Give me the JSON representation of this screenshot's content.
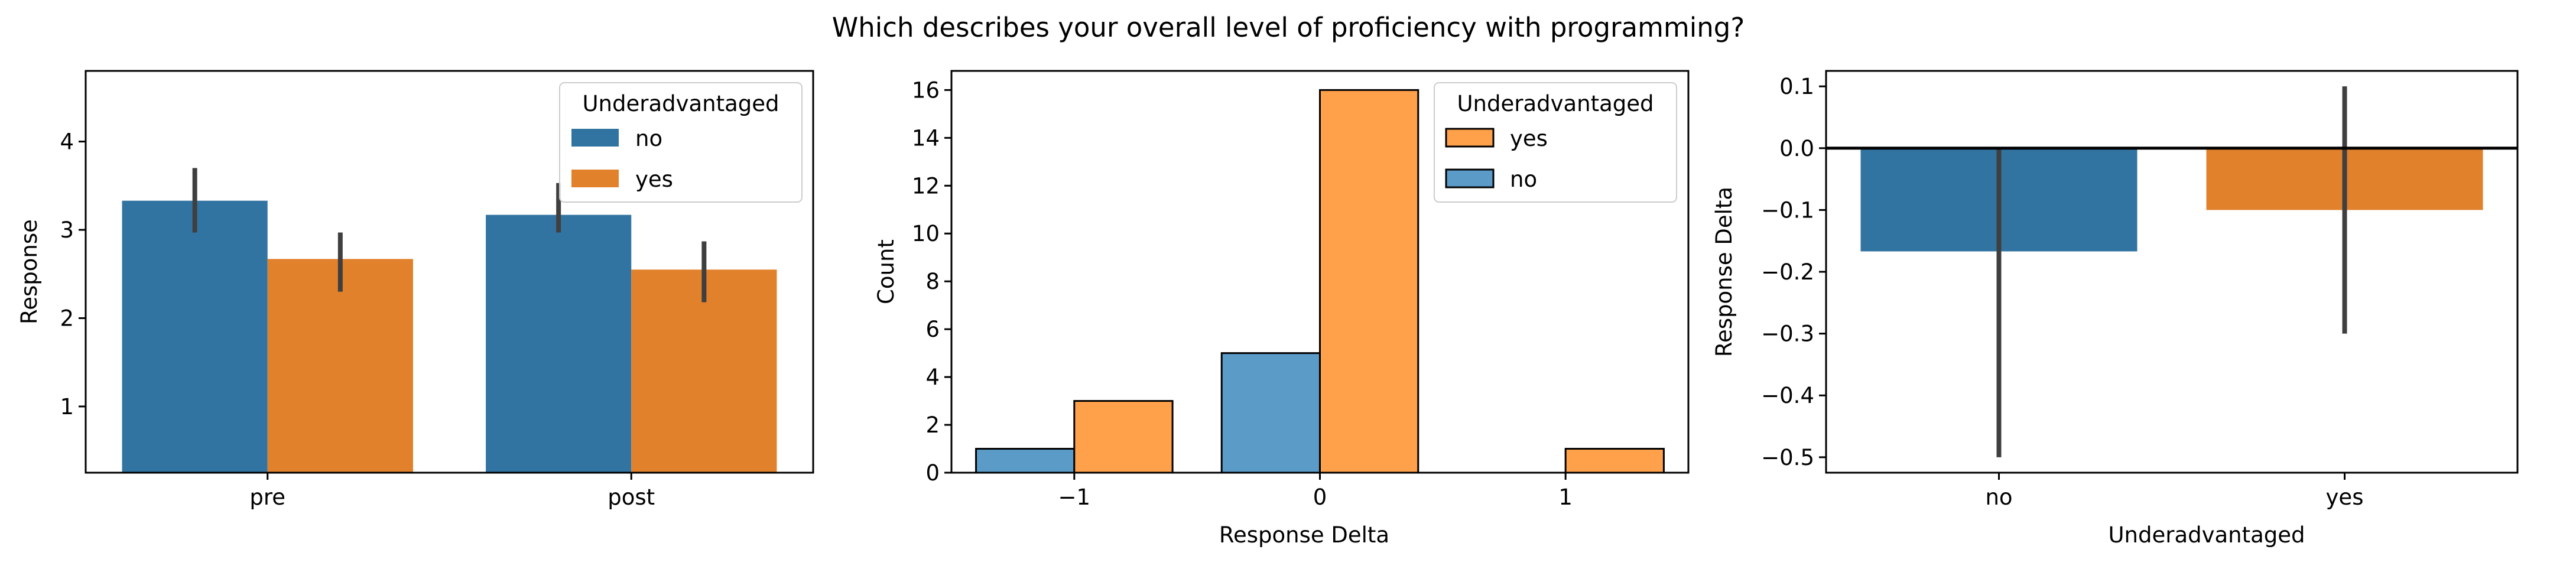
{
  "figure": {
    "title": "Which describes your overall level of proficiency with programming?"
  },
  "colors": {
    "no": "#3274a1",
    "yes": "#e1812c",
    "no_hist": "#5a9bc8",
    "yes_hist": "#ffa14a",
    "errbar": "#3f3f3f"
  },
  "chart_data": [
    {
      "type": "bar",
      "title": "",
      "xlabel": "",
      "ylabel": "Response",
      "categories": [
        "pre",
        "post"
      ],
      "ylim": [
        0.25,
        4.8
      ],
      "yticks": [
        1,
        2,
        3,
        4
      ],
      "legend": {
        "title": "Underadvantaged",
        "placement": "top-right",
        "entries": [
          "no",
          "yes"
        ]
      },
      "series": [
        {
          "name": "no",
          "values": [
            3.33,
            3.17
          ],
          "err_low": [
            2.97,
            2.97
          ],
          "err_high": [
            3.7,
            3.53
          ]
        },
        {
          "name": "yes",
          "values": [
            2.67,
            2.55
          ],
          "err_low": [
            2.3,
            2.18
          ],
          "err_high": [
            2.97,
            2.87
          ]
        }
      ]
    },
    {
      "type": "bar",
      "title": "",
      "xlabel": "Response Delta",
      "ylabel": "Count",
      "x": [
        -1,
        0,
        1
      ],
      "xtick_labels": [
        "−1",
        "0",
        "1"
      ],
      "ylim": [
        0,
        16.8
      ],
      "yticks": [
        0,
        2,
        4,
        6,
        8,
        10,
        12,
        14,
        16
      ],
      "legend": {
        "title": "Underadvantaged",
        "placement": "top-right",
        "entries": [
          "yes",
          "no"
        ]
      },
      "series": [
        {
          "name": "no",
          "values": [
            1,
            5,
            0
          ]
        },
        {
          "name": "yes",
          "values": [
            3,
            16,
            1
          ]
        }
      ]
    },
    {
      "type": "bar",
      "title": "",
      "xlabel": "Underadvantaged",
      "ylabel": "Response Delta",
      "categories": [
        "no",
        "yes"
      ],
      "ylim": [
        -0.525,
        0.125
      ],
      "yticks": [
        0.1,
        0.0,
        -0.1,
        -0.2,
        -0.3,
        -0.4,
        -0.5
      ],
      "ytick_labels": [
        "0.1",
        "0.0",
        "−0.1",
        "−0.2",
        "−0.3",
        "−0.4",
        "−0.5"
      ],
      "values": [
        -0.167,
        -0.1
      ],
      "err_low": [
        -0.5,
        -0.3
      ],
      "err_high": [
        0.0,
        0.1
      ],
      "zero_line": true
    }
  ]
}
